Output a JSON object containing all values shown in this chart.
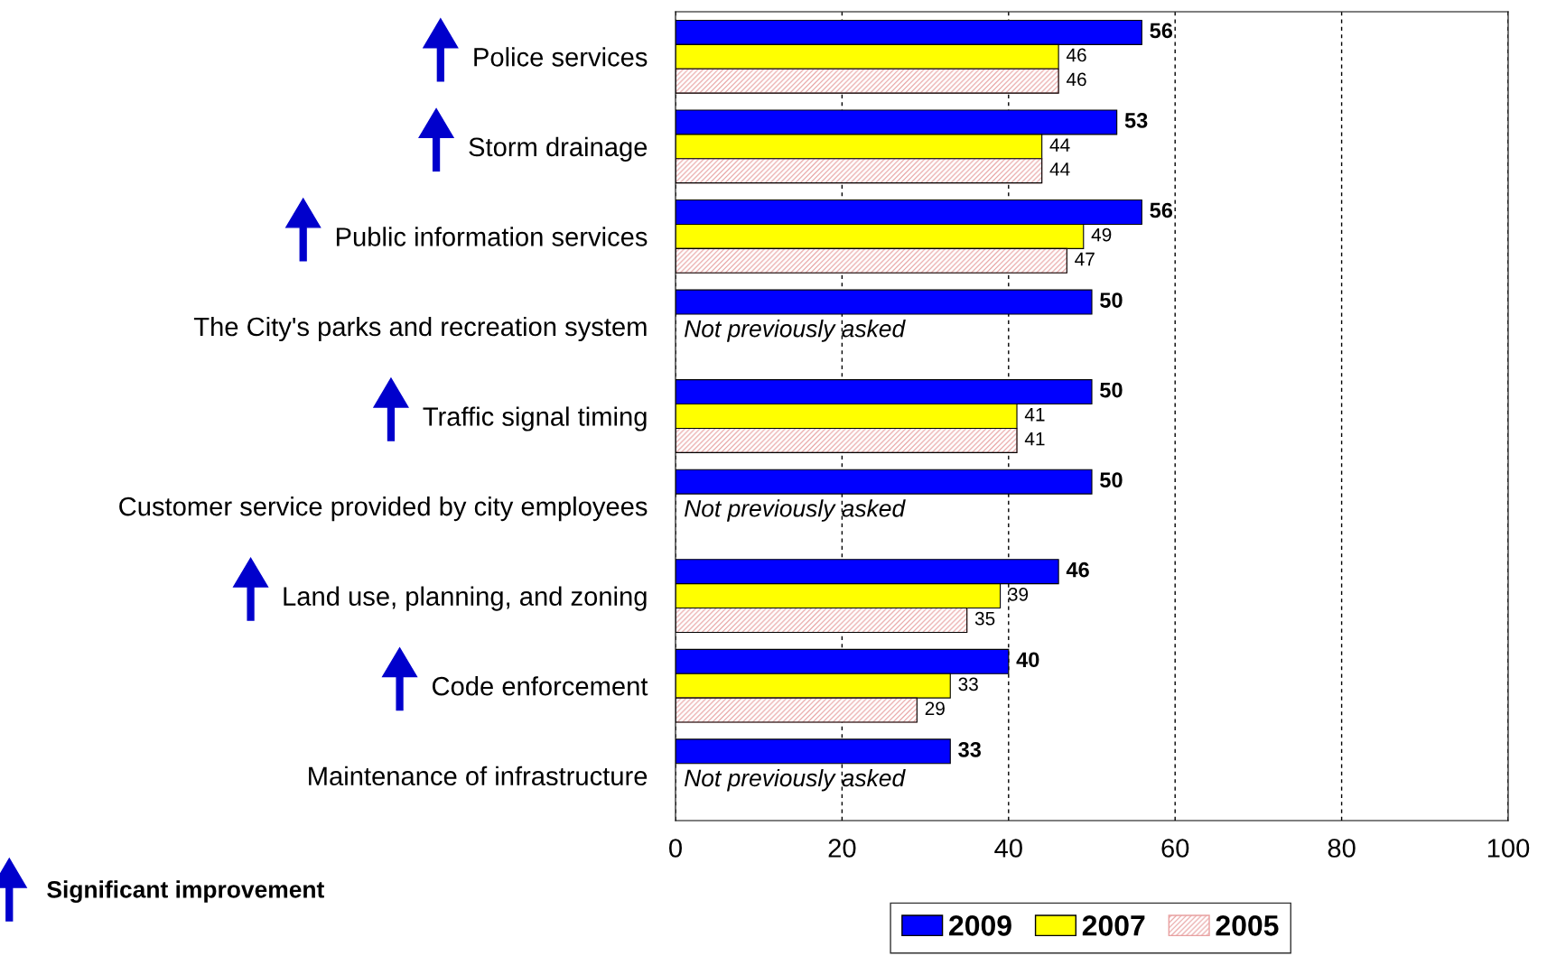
{
  "chart_data": {
    "type": "bar",
    "orientation": "horizontal",
    "categories": [
      "Police services",
      "Storm drainage",
      "Public information services",
      "The City's parks and recreation system",
      "Traffic signal timing",
      "Customer service provided by city employees",
      "Land use, planning, and zoning",
      "Code enforcement",
      "Maintenance of infrastructure"
    ],
    "series": [
      {
        "name": "2009",
        "color": "#0000ff",
        "values": [
          56,
          53,
          56,
          50,
          50,
          50,
          46,
          40,
          33
        ]
      },
      {
        "name": "2007",
        "color": "#ffff00",
        "values": [
          46,
          44,
          49,
          null,
          41,
          null,
          39,
          33,
          null
        ]
      },
      {
        "name": "2005",
        "color": "#e8a0a0",
        "values": [
          46,
          44,
          47,
          null,
          41,
          null,
          35,
          29,
          null
        ]
      }
    ],
    "xlim": [
      0,
      100
    ],
    "xticks": [
      0,
      20,
      40,
      60,
      80,
      100
    ],
    "grid": "x",
    "line_style": "dashed",
    "data_labels": true,
    "legend": "bottom",
    "annotations": [
      "Not previously asked",
      "Not previously asked",
      "Not previously asked",
      "Significant improvement"
    ]
  }
}
